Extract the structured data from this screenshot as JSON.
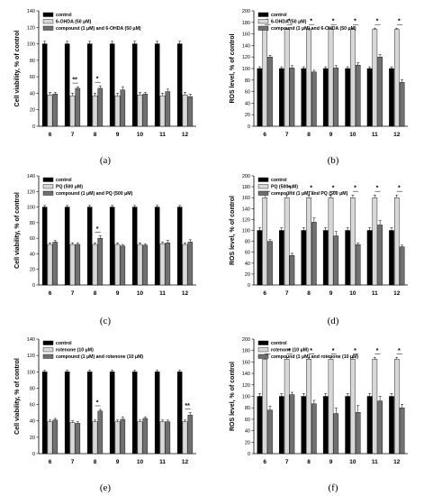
{
  "colors": {
    "control": "#000000",
    "toxin": "#d8d8d8",
    "combo": "#707070",
    "axis": "#000000"
  },
  "chart_data": [
    {
      "panel": "(a)",
      "type": "bar",
      "ylabel": "Cell viability, % of control",
      "ylim": [
        0,
        140
      ],
      "yticks": [
        0,
        20,
        40,
        60,
        80,
        100,
        120,
        140
      ],
      "categories": [
        "6",
        "7",
        "8",
        "9",
        "10",
        "11",
        "12"
      ],
      "series": [
        {
          "name": "control",
          "values": [
            100,
            100,
            100,
            100,
            100,
            100,
            100
          ],
          "errors": [
            3,
            3,
            3,
            3,
            3,
            3,
            3
          ]
        },
        {
          "name": "6-OHDA (50 μM)",
          "values": [
            38,
            37,
            37,
            37,
            38,
            37,
            38
          ],
          "errors": [
            3,
            3,
            3,
            3,
            3,
            3,
            3
          ]
        },
        {
          "name": "compound (1 μM) and 6-OHDA (50 μM)",
          "values": [
            39,
            46,
            46,
            44,
            39,
            42,
            36
          ],
          "errors": [
            2,
            2,
            3,
            4,
            2,
            3,
            3
          ]
        }
      ],
      "annotations": [
        {
          "category": "7",
          "text": "**"
        },
        {
          "category": "8",
          "text": "*"
        }
      ]
    },
    {
      "panel": "(b)",
      "type": "bar",
      "ylabel": "ROS level, % of control",
      "ylim": [
        0,
        200
      ],
      "yticks": [
        0,
        20,
        40,
        60,
        80,
        100,
        120,
        140,
        160,
        180,
        200
      ],
      "categories": [
        "6",
        "7",
        "8",
        "9",
        "10",
        "11",
        "12"
      ],
      "series": [
        {
          "name": "control",
          "values": [
            100,
            100,
            100,
            100,
            100,
            100,
            100
          ],
          "errors": [
            3,
            3,
            3,
            3,
            3,
            3,
            3
          ]
        },
        {
          "name": "6-OHDA (50 μM)",
          "values": [
            168,
            168,
            168,
            168,
            168,
            168,
            168
          ],
          "errors": [
            2,
            2,
            2,
            2,
            2,
            2,
            2
          ]
        },
        {
          "name": "compound (1 μM) and 6-OHDA (50 μM)",
          "values": [
            120,
            101,
            94,
            101,
            106,
            120,
            76
          ],
          "errors": [
            3,
            4,
            3,
            4,
            4,
            4,
            5
          ]
        }
      ],
      "annotations": [
        {
          "category": "6",
          "text": "*"
        },
        {
          "category": "7",
          "text": "*"
        },
        {
          "category": "8",
          "text": "*"
        },
        {
          "category": "9",
          "text": "*"
        },
        {
          "category": "10",
          "text": "*"
        },
        {
          "category": "11",
          "text": "*"
        },
        {
          "category": "12",
          "text": "*"
        }
      ]
    },
    {
      "panel": "(c)",
      "type": "bar",
      "ylabel": "Cell viability, % of control",
      "ylim": [
        0,
        140
      ],
      "yticks": [
        0,
        20,
        40,
        60,
        80,
        100,
        120,
        140
      ],
      "categories": [
        "6",
        "7",
        "8",
        "9",
        "10",
        "11",
        "12"
      ],
      "series": [
        {
          "name": "control",
          "values": [
            100,
            100,
            100,
            100,
            100,
            100,
            100
          ],
          "errors": [
            2,
            2,
            2,
            2,
            2,
            2,
            2
          ]
        },
        {
          "name": "PQ (500 μM)",
          "values": [
            52,
            52,
            52,
            52,
            52,
            53,
            52
          ],
          "errors": [
            2,
            2,
            2,
            2,
            2,
            2,
            2
          ]
        },
        {
          "name": "compound (1 μM) and PQ (500 μM)",
          "values": [
            55,
            52,
            60,
            50,
            51,
            54,
            55
          ],
          "errors": [
            2,
            2,
            3,
            2,
            2,
            3,
            3
          ]
        }
      ],
      "annotations": [
        {
          "category": "8",
          "text": "*"
        }
      ]
    },
    {
      "panel": "(d)",
      "type": "bar",
      "ylabel": "ROS level, % of control",
      "ylim": [
        0,
        200
      ],
      "yticks": [
        0,
        20,
        40,
        60,
        80,
        100,
        120,
        140,
        160,
        180,
        200
      ],
      "categories": [
        "6",
        "7",
        "8",
        "9",
        "10",
        "11",
        "12"
      ],
      "series": [
        {
          "name": "control",
          "values": [
            100,
            100,
            100,
            100,
            100,
            100,
            100
          ],
          "errors": [
            5,
            5,
            5,
            5,
            5,
            5,
            5
          ]
        },
        {
          "name": "PQ (500 μM)",
          "values": [
            160,
            160,
            160,
            160,
            160,
            160,
            160
          ],
          "errors": [
            5,
            5,
            5,
            5,
            5,
            5,
            5
          ]
        },
        {
          "name": "compound (1 μM) and PQ (500 μM)",
          "values": [
            80,
            54,
            115,
            90,
            74,
            110,
            70
          ],
          "errors": [
            3,
            4,
            8,
            8,
            3,
            8,
            3
          ]
        }
      ],
      "annotations": [
        {
          "category": "6",
          "text": "*"
        },
        {
          "category": "7",
          "text": "*"
        },
        {
          "category": "8",
          "text": "*"
        },
        {
          "category": "9",
          "text": "*"
        },
        {
          "category": "10",
          "text": "*"
        },
        {
          "category": "11",
          "text": "*"
        },
        {
          "category": "12",
          "text": "*"
        }
      ]
    },
    {
      "panel": "(e)",
      "type": "bar",
      "ylabel": "Cell viability, % of control",
      "ylim": [
        0,
        140
      ],
      "yticks": [
        0,
        20,
        40,
        60,
        80,
        100,
        120,
        140
      ],
      "categories": [
        "6",
        "7",
        "8",
        "9",
        "10",
        "11",
        "12"
      ],
      "series": [
        {
          "name": "control",
          "values": [
            100,
            100,
            100,
            100,
            100,
            100,
            100
          ],
          "errors": [
            2,
            2,
            2,
            2,
            2,
            2,
            2
          ]
        },
        {
          "name": "rotenone (10 μM)",
          "values": [
            39,
            38,
            39,
            39,
            39,
            39,
            39
          ],
          "errors": [
            2,
            2,
            2,
            2,
            2,
            2,
            2
          ]
        },
        {
          "name": "compound (1 μM) and rotenone (10 μM)",
          "values": [
            41,
            37,
            52,
            42,
            43,
            39,
            47
          ],
          "errors": [
            2,
            2,
            2,
            3,
            2,
            2,
            3
          ]
        }
      ],
      "annotations": [
        {
          "category": "8",
          "text": "*"
        },
        {
          "category": "12",
          "text": "**"
        }
      ]
    },
    {
      "panel": "(f)",
      "type": "bar",
      "ylabel": "ROS level, % of control",
      "ylim": [
        0,
        200
      ],
      "yticks": [
        0,
        20,
        40,
        60,
        80,
        100,
        120,
        140,
        160,
        180,
        200
      ],
      "categories": [
        "6",
        "7",
        "8",
        "9",
        "10",
        "11",
        "12"
      ],
      "series": [
        {
          "name": "control",
          "values": [
            100,
            100,
            100,
            100,
            100,
            100,
            100
          ],
          "errors": [
            5,
            5,
            5,
            5,
            5,
            5,
            5
          ]
        },
        {
          "name": "rotenone (10 μM)",
          "values": [
            165,
            165,
            165,
            165,
            165,
            165,
            165
          ],
          "errors": [
            3,
            3,
            3,
            3,
            3,
            3,
            3
          ]
        },
        {
          "name": "compound (1 μM) and rotenone (10 μM)",
          "values": [
            76,
            103,
            87,
            70,
            72,
            92,
            80
          ],
          "errors": [
            7,
            4,
            6,
            10,
            12,
            8,
            6
          ]
        }
      ],
      "annotations": [
        {
          "category": "6",
          "text": "*"
        },
        {
          "category": "7",
          "text": "*"
        },
        {
          "category": "8",
          "text": "*"
        },
        {
          "category": "9",
          "text": "*"
        },
        {
          "category": "10",
          "text": "*"
        },
        {
          "category": "11",
          "text": "*"
        },
        {
          "category": "12",
          "text": "*"
        }
      ]
    }
  ]
}
